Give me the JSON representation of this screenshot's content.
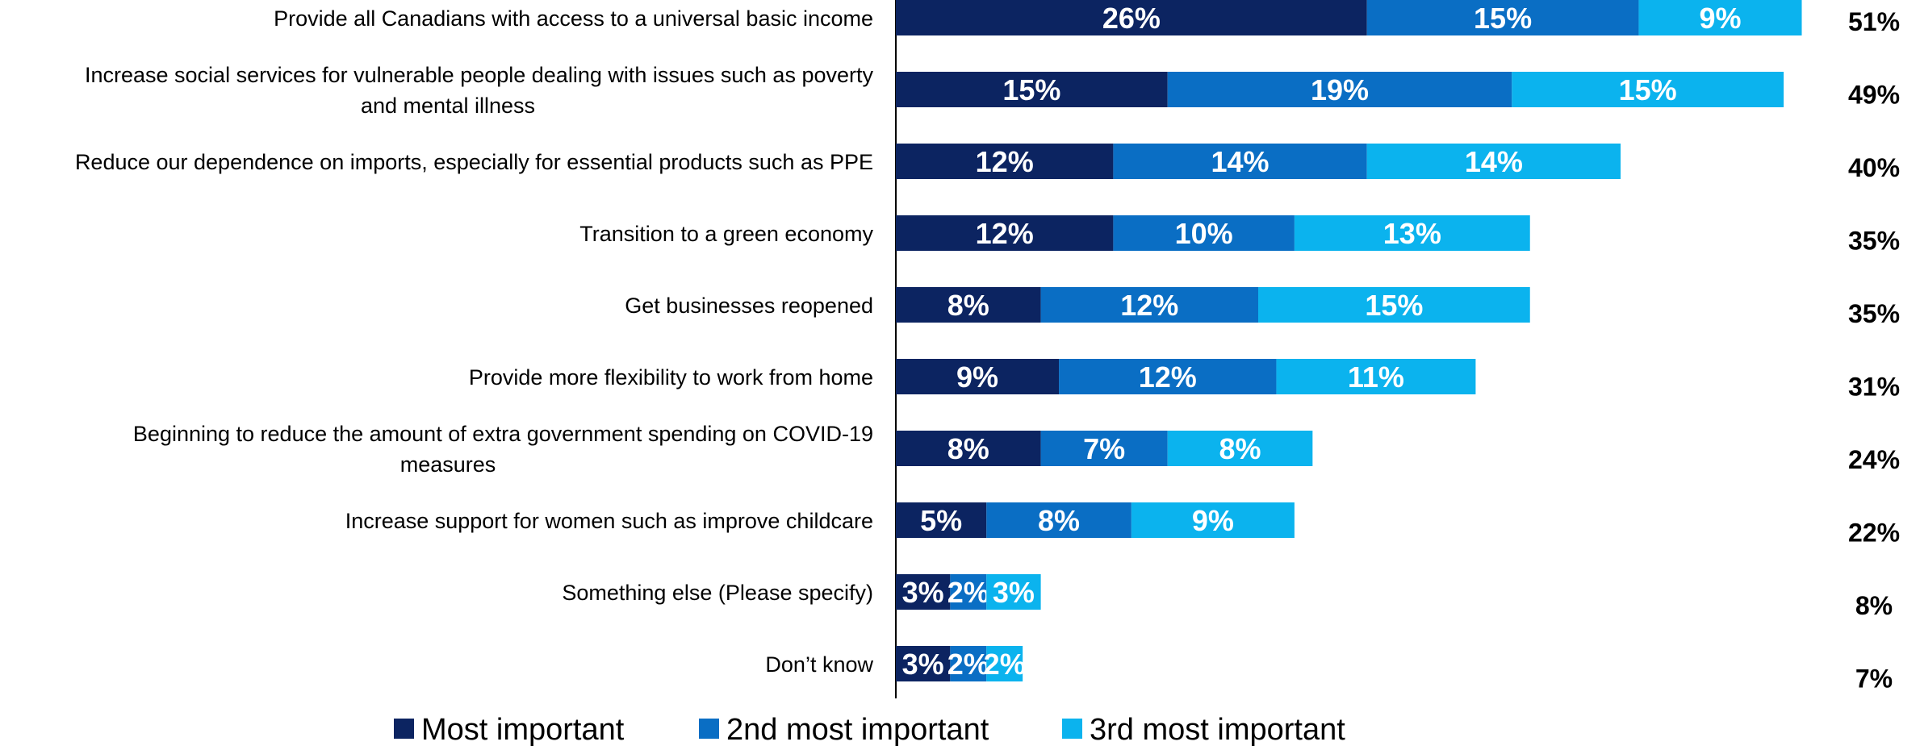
{
  "chart_data": {
    "type": "bar",
    "orientation": "horizontal",
    "stacked": true,
    "title": "",
    "xlabel": "",
    "ylabel": "",
    "xlim": [
      0,
      60
    ],
    "grid": false,
    "legend_position": "bottom",
    "categories": [
      "Provide all Canadians with access to a universal basic income",
      "Increase social services for vulnerable people dealing with issues such as poverty and mental illness",
      "Reduce our dependence on imports, especially for essential products such as PPE",
      "Transition to a green economy",
      "Get businesses reopened",
      "Provide more flexibility to work from home",
      "Beginning to reduce the amount of extra government spending on COVID-19 measures",
      "Increase support for women such as improve childcare",
      "Something else (Please specify)",
      "Don’t know"
    ],
    "category_lines": [
      [
        "Provide all Canadians with access to a universal basic income"
      ],
      [
        "Increase social services for vulnerable people dealing with issues such as poverty",
        "and mental illness"
      ],
      [
        "Reduce our dependence on imports, especially for essential products such as PPE"
      ],
      [
        "Transition to a green economy"
      ],
      [
        "Get businesses reopened"
      ],
      [
        "Provide more flexibility to work from home"
      ],
      [
        "Beginning to reduce the amount of extra government spending on COVID-19",
        "measures"
      ],
      [
        "Increase support for women such as improve childcare"
      ],
      [
        "Something else (Please specify)"
      ],
      [
        "Don’t know"
      ]
    ],
    "series": [
      {
        "name": "Most important",
        "color": "#0c2461",
        "values": [
          26,
          15,
          12,
          12,
          8,
          9,
          8,
          5,
          3,
          3
        ],
        "labels": [
          "26%",
          "15%",
          "12%",
          "12%",
          "8%",
          "9%",
          "8%",
          "5%",
          "3%",
          "3%"
        ]
      },
      {
        "name": "2nd most important",
        "color": "#0a6ec4",
        "values": [
          15,
          19,
          14,
          10,
          12,
          12,
          7,
          8,
          2,
          2
        ],
        "labels": [
          "15%",
          "19%",
          "14%",
          "10%",
          "12%",
          "12%",
          "7%",
          "8%",
          "2%",
          "2%"
        ]
      },
      {
        "name": "3rd most important",
        "color": "#0bb3ee",
        "values": [
          9,
          15,
          14,
          13,
          15,
          11,
          8,
          9,
          3,
          2
        ],
        "labels": [
          "9%",
          "15%",
          "14%",
          "13%",
          "15%",
          "11%",
          "8%",
          "9%",
          "3%",
          "2%"
        ]
      }
    ],
    "totals": [
      51,
      49,
      40,
      35,
      35,
      31,
      24,
      22,
      8,
      7
    ],
    "total_labels": [
      "51%",
      "49%",
      "40%",
      "35%",
      "35%",
      "31%",
      "24%",
      "22%",
      "8%",
      "7%"
    ]
  }
}
